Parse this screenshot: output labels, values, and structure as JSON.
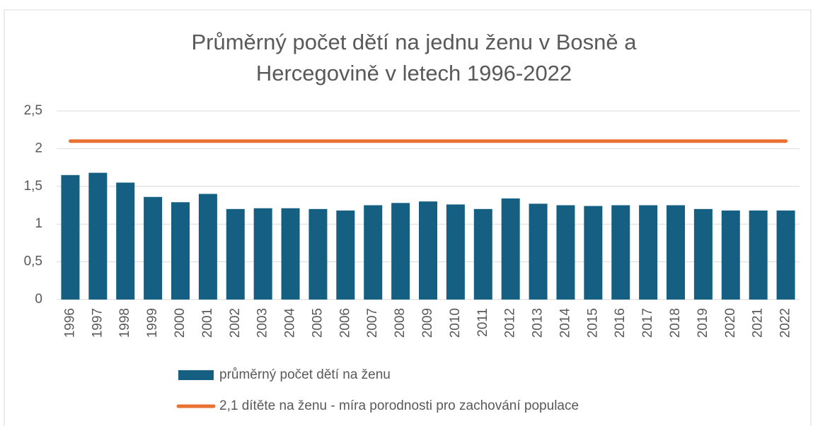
{
  "chart_data": {
    "type": "bar",
    "title": "Průměrný počet dětí na jednu ženu v Bosně a Hercegovině v letech 1996-2022",
    "categories": [
      "1996",
      "1997",
      "1998",
      "1999",
      "2000",
      "2001",
      "2002",
      "2003",
      "2004",
      "2005",
      "2006",
      "2007",
      "2008",
      "2009",
      "2010",
      "2011",
      "2012",
      "2013",
      "2014",
      "2015",
      "2016",
      "2017",
      "2018",
      "2019",
      "2020",
      "2021",
      "2022"
    ],
    "series": [
      {
        "name": "průměrný počet dětí na ženu",
        "type": "bar",
        "color": "#156082",
        "values": [
          1.65,
          1.68,
          1.55,
          1.36,
          1.29,
          1.4,
          1.2,
          1.21,
          1.21,
          1.2,
          1.18,
          1.25,
          1.28,
          1.3,
          1.26,
          1.2,
          1.34,
          1.27,
          1.25,
          1.24,
          1.25,
          1.25,
          1.25,
          1.2,
          1.18,
          1.18,
          1.18
        ]
      },
      {
        "name": "2,1 dítěte na ženu - míra porodnosti pro zachování populace",
        "type": "line",
        "color": "#e97132",
        "values": [
          2.1,
          2.1,
          2.1,
          2.1,
          2.1,
          2.1,
          2.1,
          2.1,
          2.1,
          2.1,
          2.1,
          2.1,
          2.1,
          2.1,
          2.1,
          2.1,
          2.1,
          2.1,
          2.1,
          2.1,
          2.1,
          2.1,
          2.1,
          2.1,
          2.1,
          2.1,
          2.1
        ]
      }
    ],
    "ylim": [
      0,
      2.5
    ],
    "yticks": [
      0,
      {
        "value": 0.5,
        "label": "0,5"
      },
      1,
      {
        "value": 1.5,
        "label": "1,5"
      },
      2,
      {
        "value": 2.5,
        "label": "2,5"
      }
    ],
    "grid": true,
    "legend": "bottom"
  }
}
